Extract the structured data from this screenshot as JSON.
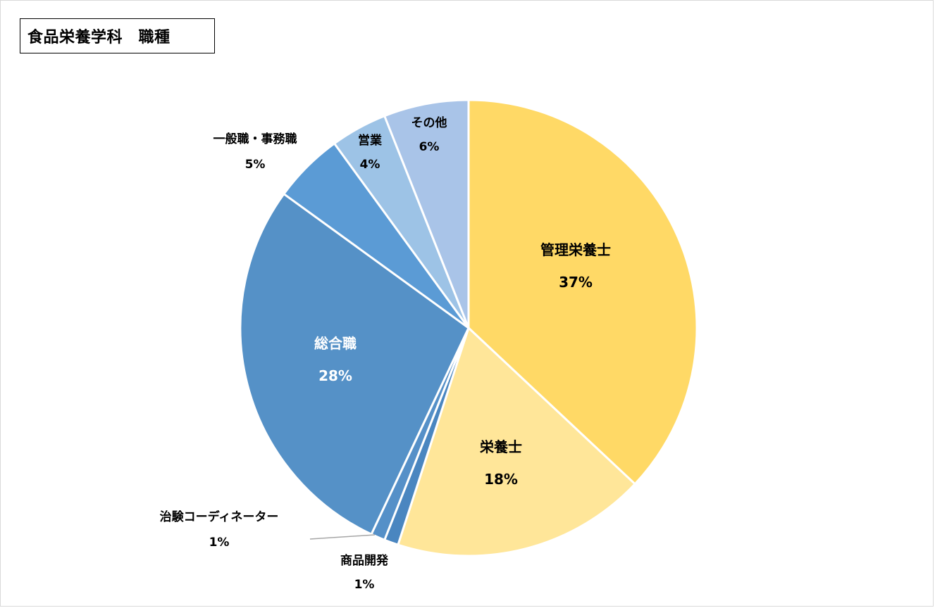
{
  "chart_data": {
    "type": "pie",
    "title": "食品栄養学科　職種",
    "slices": [
      {
        "label": "管理栄養士",
        "value": 37,
        "pct": "37%",
        "color": "#FFD966",
        "label_color": "#000000"
      },
      {
        "label": "栄養士",
        "value": 18,
        "pct": "18%",
        "color": "#FFE699",
        "label_color": "#000000"
      },
      {
        "label": "商品開発",
        "value": 1,
        "pct": "1%",
        "color": "#4A86C0",
        "label_color": "#000000"
      },
      {
        "label": "治験コーディネーター",
        "value": 1,
        "pct": "1%",
        "color": "#5590C8",
        "label_color": "#000000"
      },
      {
        "label": "総合職",
        "value": 28,
        "pct": "28%",
        "color": "#5591C7",
        "label_color": "#FFFFFF"
      },
      {
        "label": "一般職・事務職",
        "value": 5,
        "pct": "5%",
        "color": "#5B9BD5",
        "label_color": "#000000"
      },
      {
        "label": "営業",
        "value": 4,
        "pct": "4%",
        "color": "#9DC3E6",
        "label_color": "#000000"
      },
      {
        "label": "その他",
        "value": 6,
        "pct": "6%",
        "color": "#A9C4E8",
        "label_color": "#000000"
      }
    ],
    "start_angle_deg": 0,
    "direction": "clockwise",
    "legend": "none"
  }
}
